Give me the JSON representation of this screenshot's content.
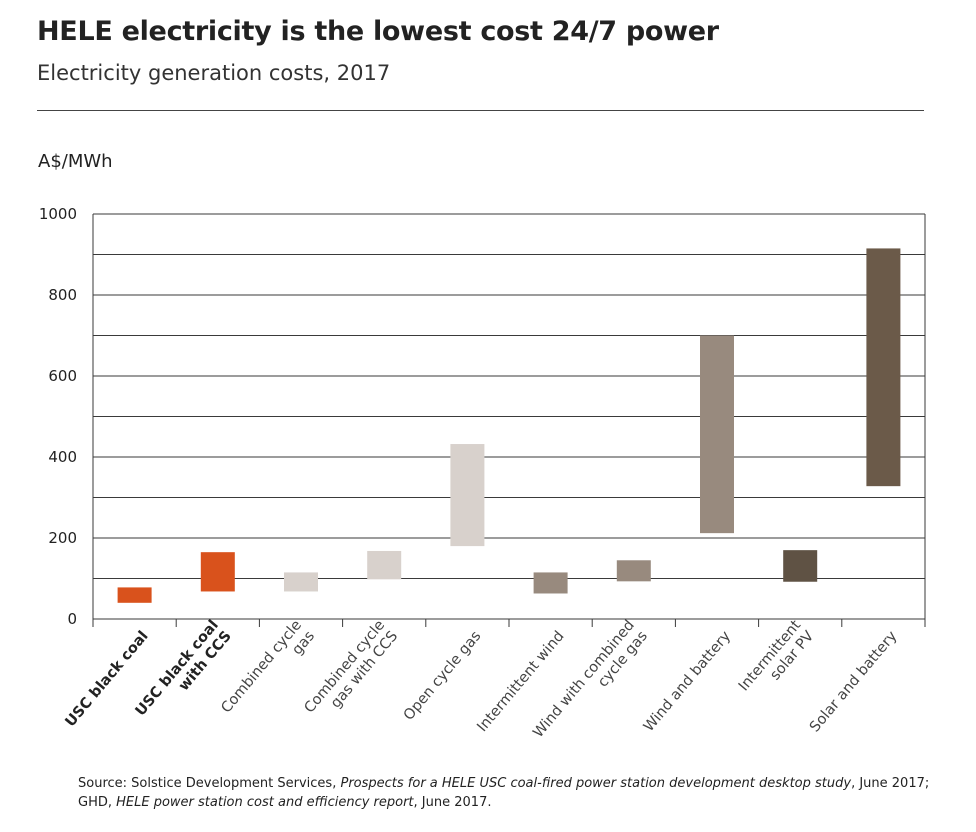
{
  "chart_data": {
    "type": "bar",
    "subtype": "floating-range",
    "title": "HELE electricity is the lowest cost 24/7 power",
    "subtitle": "Electricity generation costs, 2017",
    "ylabel": "A$/MWh",
    "xlabel": "",
    "ylim": [
      0,
      1000
    ],
    "yticks": [
      0,
      200,
      400,
      600,
      800,
      1000
    ],
    "grid": true,
    "categories": [
      {
        "label": [
          "USC black coal"
        ],
        "bold": true,
        "low": 40,
        "high": 78,
        "color": "#d9521c"
      },
      {
        "label": [
          "USC black coal",
          "with CCS"
        ],
        "bold": true,
        "low": 68,
        "high": 165,
        "color": "#d9521c"
      },
      {
        "label": [
          "Combined cycle",
          "gas"
        ],
        "bold": false,
        "low": 68,
        "high": 115,
        "color": "#d8d1cc"
      },
      {
        "label": [
          "Combined cycle",
          "gas with CCS"
        ],
        "bold": false,
        "low": 98,
        "high": 168,
        "color": "#d8d1cc"
      },
      {
        "label": [
          "Open cycle gas"
        ],
        "bold": false,
        "low": 180,
        "high": 432,
        "color": "#d8d1cc"
      },
      {
        "label": [
          "Intermittent wind"
        ],
        "bold": false,
        "low": 63,
        "high": 115,
        "color": "#988a7e"
      },
      {
        "label": [
          "Wind with combined",
          "cycle gas"
        ],
        "bold": false,
        "low": 93,
        "high": 145,
        "color": "#988a7e"
      },
      {
        "label": [
          "Wind and battery"
        ],
        "bold": false,
        "low": 212,
        "high": 700,
        "color": "#988a7e"
      },
      {
        "label": [
          "Intermittent",
          "solar PV"
        ],
        "bold": false,
        "low": 92,
        "high": 170,
        "color": "#5f5244"
      },
      {
        "label": [
          "Solar and battery"
        ],
        "bold": false,
        "low": 328,
        "high": 915,
        "color": "#6b5a49"
      }
    ]
  },
  "source": {
    "prefix": "Source: Solstice Development Services, ",
    "title1": "Prospects for a HELE USC coal-fired power station development desktop study",
    "middle": ", June 2017; GHD, ",
    "title2": "HELE power station cost and efficiency report",
    "suffix": ", June 2017."
  }
}
